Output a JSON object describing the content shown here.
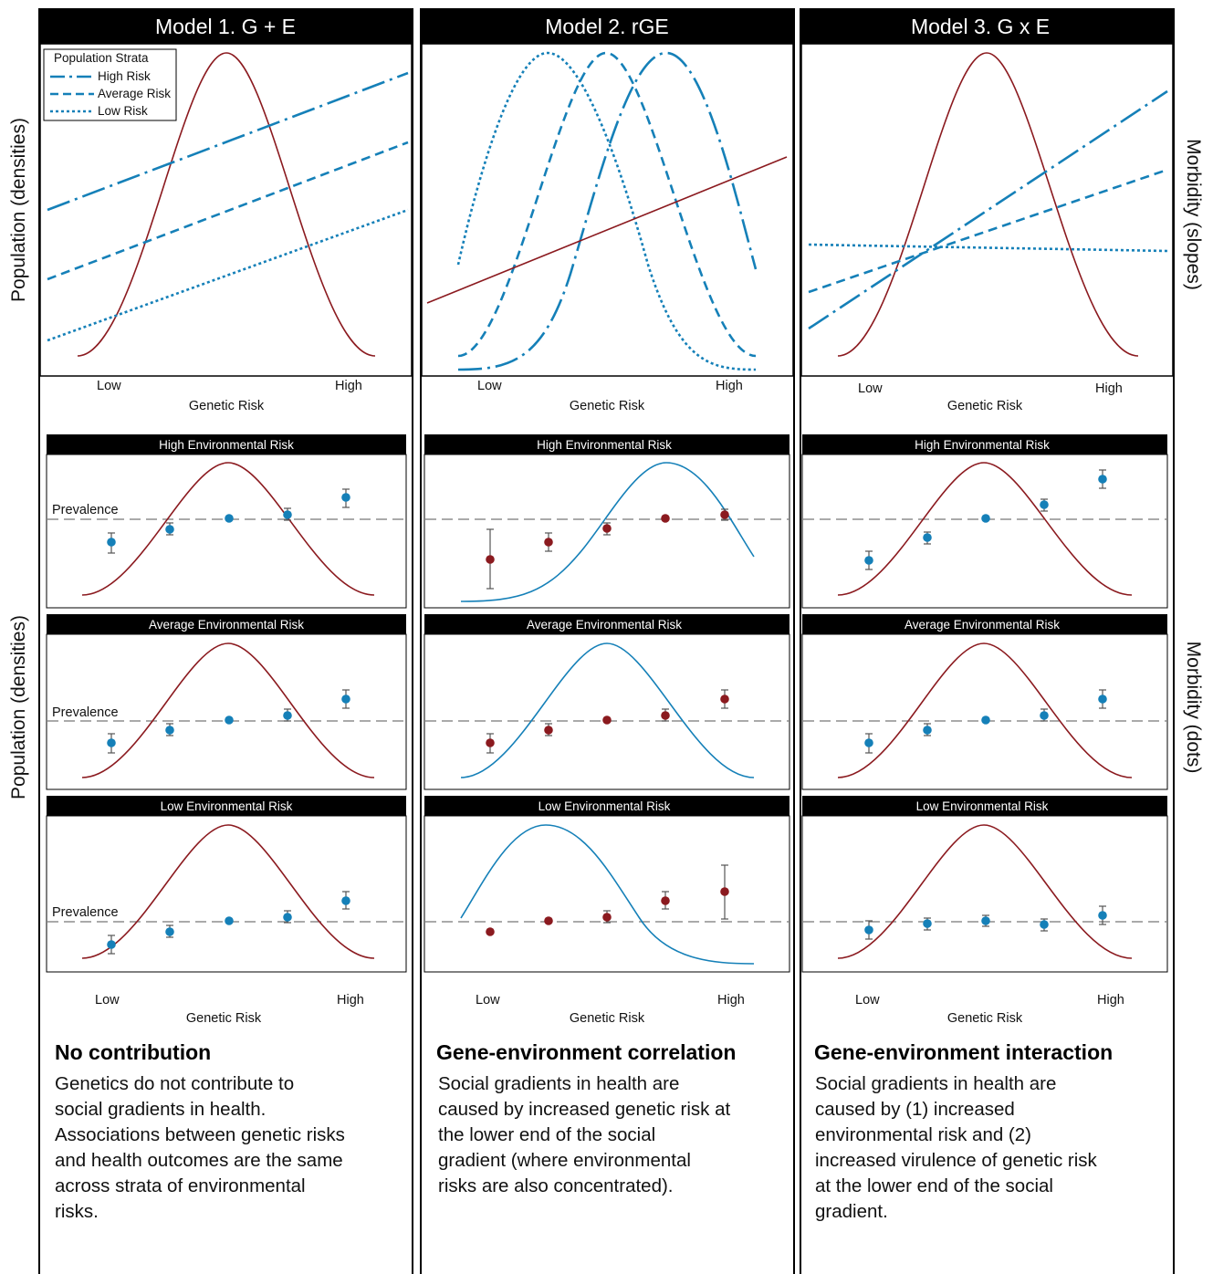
{
  "side_labels": {
    "left_top": "Population (densities)",
    "left_bottom": "Population (densities)",
    "right_top": "Morbidity (slopes)",
    "right_bottom": "Morbidity (dots)"
  },
  "legend": {
    "title": "Population Strata",
    "items": [
      "High Risk",
      "Average Risk",
      "Low Risk"
    ]
  },
  "colors": {
    "curve_red": "#8b1a1f",
    "line_blue": "#1580b8",
    "dot_blue": "#1580b8",
    "dot_red": "#8b1a1f",
    "prevalence_line": "#777777"
  },
  "columns": [
    {
      "title": "Model 1. G + E",
      "x_low": "Low",
      "x_high": "High",
      "x_label": "Genetic Risk",
      "heading": "No contribution",
      "description": [
        "Genetics do not contribute to",
        "social gradients in health.",
        "Associations between genetic risks",
        "and health outcomes are the same",
        "across strata of environmental",
        "risks."
      ],
      "panels": [
        {
          "title": "High Environmental Risk",
          "prevalence_label": "Prevalence"
        },
        {
          "title": "Average Environmental Risk",
          "prevalence_label": "Prevalence"
        },
        {
          "title": "Low Environmental Risk",
          "prevalence_label": "Prevalence"
        }
      ]
    },
    {
      "title": "Model 2. rGE",
      "x_low": "Low",
      "x_high": "High",
      "x_label": "Genetic Risk",
      "heading": "Gene-environment correlation",
      "description": [
        "Social gradients in health are",
        "caused by increased genetic risk at",
        "the lower end of the social",
        "gradient (where environmental",
        "risks are also concentrated)."
      ],
      "panels": [
        {
          "title": "High Environmental Risk",
          "prevalence_label": ""
        },
        {
          "title": "Average Environmental Risk",
          "prevalence_label": ""
        },
        {
          "title": "Low Environmental Risk",
          "prevalence_label": ""
        }
      ]
    },
    {
      "title": "Model 3. G x E",
      "x_low": "Low",
      "x_high": "High",
      "x_label": "Genetic Risk",
      "heading": "Gene-environment interaction",
      "description": [
        "Social gradients in health are",
        "caused by (1) increased",
        "environmental risk and (2)",
        "increased virulence of genetic risk",
        "at the lower end of the social",
        "gradient."
      ],
      "panels": [
        {
          "title": "High Environmental Risk",
          "prevalence_label": ""
        },
        {
          "title": "Average Environmental Risk",
          "prevalence_label": ""
        },
        {
          "title": "Low Environmental Risk",
          "prevalence_label": ""
        }
      ]
    }
  ]
}
